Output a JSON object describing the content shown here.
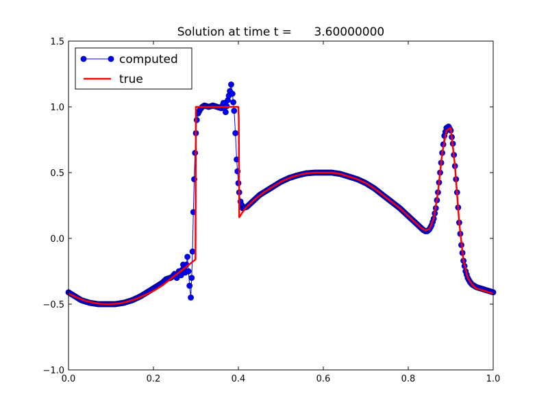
{
  "chart_data": {
    "type": "line",
    "title": "Solution at time t =      3.60000000",
    "xlabel": "",
    "ylabel": "",
    "xlim": [
      0.0,
      1.0
    ],
    "ylim": [
      -1.0,
      1.5
    ],
    "x_ticks": [
      "0.0",
      "0.2",
      "0.4",
      "0.6",
      "0.8",
      "1.0"
    ],
    "y_ticks": [
      "−1.0",
      "−0.5",
      "0.0",
      "0.5",
      "1.0",
      "1.5"
    ],
    "grid": false,
    "legend": {
      "placement": "top-left",
      "entries": [
        "computed",
        "true"
      ]
    },
    "series": [
      {
        "name": "computed",
        "style": "line-with-circle-markers",
        "color": "#0000ff",
        "edge_color": "#000080",
        "x": [
          0.0,
          0.01,
          0.02,
          0.03,
          0.04,
          0.05,
          0.06,
          0.07,
          0.08,
          0.09,
          0.1,
          0.11,
          0.12,
          0.13,
          0.14,
          0.15,
          0.16,
          0.17,
          0.18,
          0.19,
          0.2,
          0.21,
          0.22,
          0.23,
          0.24,
          0.245,
          0.25,
          0.255,
          0.26,
          0.265,
          0.27,
          0.275,
          0.28,
          0.285,
          0.288,
          0.29,
          0.292,
          0.294,
          0.296,
          0.298,
          0.3,
          0.302,
          0.305,
          0.31,
          0.315,
          0.32,
          0.33,
          0.34,
          0.35,
          0.36,
          0.365,
          0.37,
          0.375,
          0.38,
          0.383,
          0.386,
          0.39,
          0.393,
          0.396,
          0.4,
          0.402,
          0.405,
          0.41,
          0.42,
          0.43,
          0.44,
          0.45,
          0.46,
          0.47,
          0.48,
          0.49,
          0.5,
          0.52,
          0.54,
          0.56,
          0.58,
          0.6,
          0.62,
          0.64,
          0.66,
          0.68,
          0.7,
          0.72,
          0.74,
          0.76,
          0.78,
          0.8,
          0.81,
          0.82,
          0.83,
          0.835,
          0.84,
          0.845,
          0.85,
          0.855,
          0.86,
          0.865,
          0.87,
          0.875,
          0.88,
          0.885,
          0.89,
          0.895,
          0.9,
          0.905,
          0.91,
          0.915,
          0.92,
          0.925,
          0.93,
          0.935,
          0.94,
          0.945,
          0.95,
          0.96,
          0.97,
          0.98,
          0.99,
          1.0
        ],
        "y": [
          -0.41,
          -0.43,
          -0.45,
          -0.47,
          -0.48,
          -0.49,
          -0.495,
          -0.5,
          -0.5,
          -0.5,
          -0.5,
          -0.5,
          -0.495,
          -0.49,
          -0.48,
          -0.47,
          -0.455,
          -0.44,
          -0.42,
          -0.4,
          -0.38,
          -0.36,
          -0.34,
          -0.31,
          -0.3,
          -0.29,
          -0.27,
          -0.3,
          -0.25,
          -0.28,
          -0.2,
          -0.26,
          -0.14,
          -0.36,
          -0.45,
          -0.3,
          -0.1,
          0.2,
          0.45,
          0.65,
          0.8,
          0.9,
          0.95,
          0.98,
          1.0,
          1.01,
          1.0,
          1.01,
          1.0,
          0.99,
          1.03,
          0.96,
          1.05,
          1.12,
          1.17,
          1.1,
          0.97,
          0.8,
          0.6,
          0.42,
          0.35,
          0.28,
          0.23,
          0.24,
          0.27,
          0.3,
          0.33,
          0.35,
          0.37,
          0.39,
          0.41,
          0.43,
          0.46,
          0.48,
          0.495,
          0.5,
          0.5,
          0.5,
          0.49,
          0.47,
          0.45,
          0.42,
          0.38,
          0.33,
          0.28,
          0.23,
          0.17,
          0.14,
          0.11,
          0.08,
          0.065,
          0.055,
          0.055,
          0.07,
          0.1,
          0.15,
          0.23,
          0.35,
          0.5,
          0.65,
          0.78,
          0.84,
          0.85,
          0.82,
          0.72,
          0.55,
          0.35,
          0.12,
          -0.05,
          -0.17,
          -0.25,
          -0.3,
          -0.33,
          -0.35,
          -0.37,
          -0.38,
          -0.39,
          -0.4,
          -0.41
        ]
      },
      {
        "name": "true",
        "style": "line",
        "color": "#ff0000",
        "x": [
          0.0,
          0.02,
          0.04,
          0.06,
          0.08,
          0.1,
          0.12,
          0.14,
          0.16,
          0.18,
          0.2,
          0.22,
          0.24,
          0.26,
          0.28,
          0.299,
          0.3,
          0.302,
          0.4,
          0.401,
          0.402,
          0.41,
          0.42,
          0.44,
          0.46,
          0.48,
          0.5,
          0.52,
          0.54,
          0.56,
          0.58,
          0.6,
          0.62,
          0.64,
          0.66,
          0.68,
          0.7,
          0.72,
          0.74,
          0.76,
          0.78,
          0.8,
          0.81,
          0.82,
          0.83,
          0.84,
          0.85,
          0.86,
          0.87,
          0.88,
          0.89,
          0.9,
          0.91,
          0.92,
          0.93,
          0.94,
          0.95,
          0.96,
          0.98,
          1.0
        ],
        "y": [
          -0.42,
          -0.45,
          -0.475,
          -0.49,
          -0.5,
          -0.5,
          -0.495,
          -0.48,
          -0.46,
          -0.43,
          -0.4,
          -0.36,
          -0.31,
          -0.26,
          -0.21,
          -0.16,
          1.0,
          1.0,
          1.0,
          0.9,
          0.16,
          0.2,
          0.24,
          0.3,
          0.35,
          0.39,
          0.43,
          0.46,
          0.48,
          0.495,
          0.5,
          0.5,
          0.5,
          0.49,
          0.47,
          0.45,
          0.42,
          0.38,
          0.33,
          0.28,
          0.23,
          0.17,
          0.14,
          0.11,
          0.08,
          0.06,
          0.07,
          0.15,
          0.35,
          0.65,
          0.82,
          0.84,
          0.55,
          0.12,
          -0.17,
          -0.3,
          -0.35,
          -0.38,
          -0.4,
          -0.42
        ]
      }
    ]
  }
}
